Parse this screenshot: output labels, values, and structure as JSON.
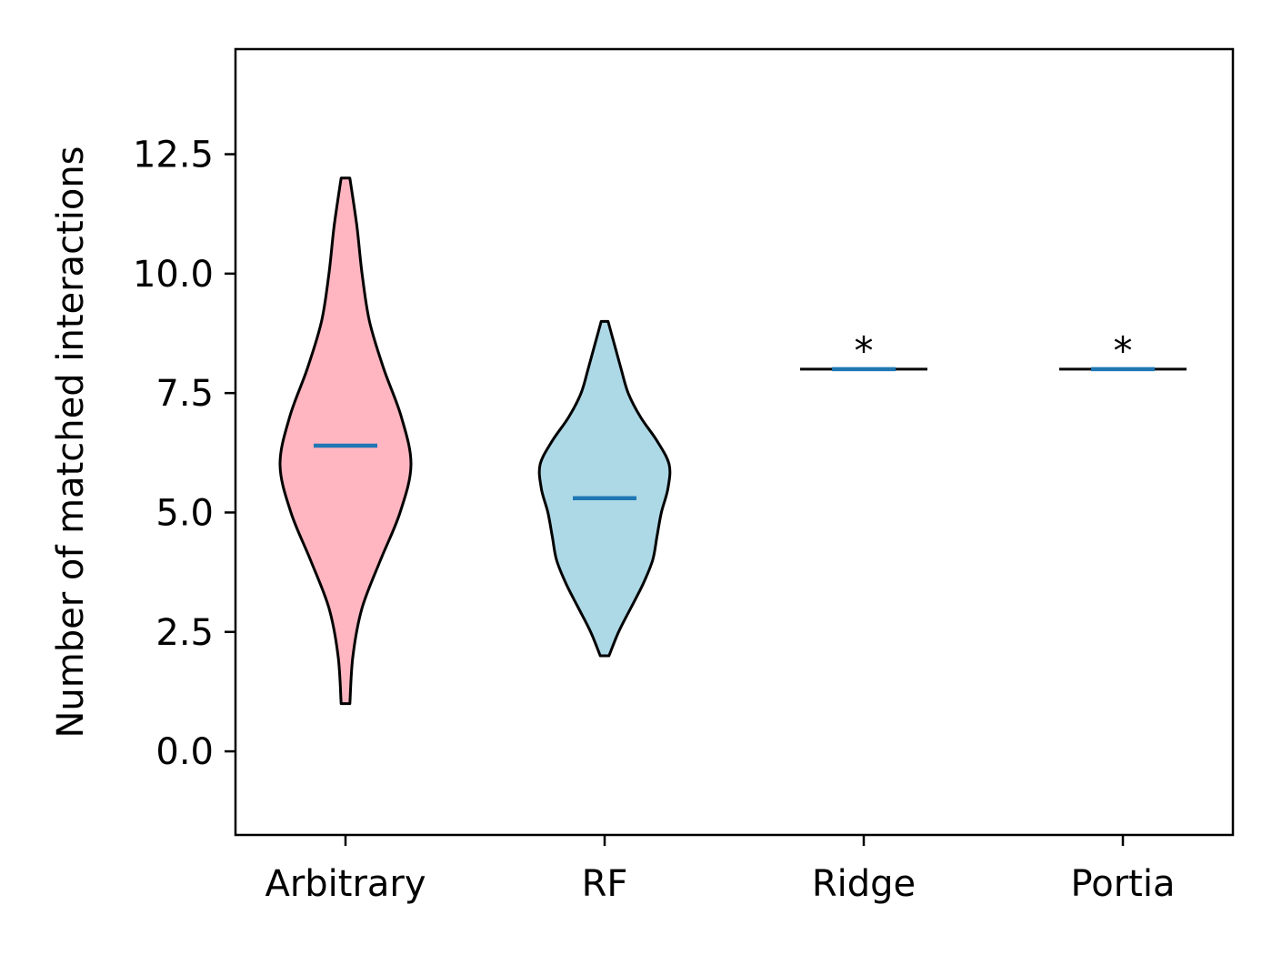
{
  "chart_data": {
    "type": "violin",
    "title": "",
    "xlabel": "",
    "ylabel": "Number of matched interactions",
    "ylim": [
      -1.75,
      14.7
    ],
    "yticks": [
      0.0,
      2.5,
      5.0,
      7.5,
      10.0,
      12.5
    ],
    "ytick_labels": [
      "0.0",
      "2.5",
      "5.0",
      "7.5",
      "10.0",
      "12.5"
    ],
    "categories": [
      "Arbitrary",
      "RF",
      "Ridge",
      "Portia"
    ],
    "grid": false,
    "legend": "none",
    "colors": {
      "Arbitrary": "#ffb6c1",
      "RF": "#add8e6",
      "mean_line": "#1f77b4",
      "outline": "#000000"
    },
    "violins": [
      {
        "category": "Arbitrary",
        "min": 1.0,
        "max": 12.0,
        "mean": 6.4,
        "profile": [
          [
            1.0,
            0.1
          ],
          [
            2.0,
            0.17
          ],
          [
            3.0,
            0.38
          ],
          [
            4.0,
            0.8
          ],
          [
            5.0,
            1.25
          ],
          [
            6.0,
            1.5
          ],
          [
            7.0,
            1.28
          ],
          [
            8.0,
            0.88
          ],
          [
            9.0,
            0.55
          ],
          [
            10.0,
            0.38
          ],
          [
            11.0,
            0.26
          ],
          [
            12.0,
            0.1
          ]
        ]
      },
      {
        "category": "RF",
        "min": 2.0,
        "max": 9.0,
        "mean": 5.3,
        "profile": [
          [
            2.0,
            0.1
          ],
          [
            2.5,
            0.32
          ],
          [
            3.0,
            0.6
          ],
          [
            3.5,
            0.88
          ],
          [
            4.0,
            1.1
          ],
          [
            4.5,
            1.2
          ],
          [
            5.0,
            1.3
          ],
          [
            5.5,
            1.45
          ],
          [
            6.0,
            1.48
          ],
          [
            6.5,
            1.2
          ],
          [
            7.0,
            0.82
          ],
          [
            7.5,
            0.54
          ],
          [
            8.0,
            0.38
          ],
          [
            8.5,
            0.23
          ],
          [
            9.0,
            0.08
          ]
        ]
      },
      {
        "category": "Ridge",
        "value": 8.0,
        "mean": 8.0,
        "annotation": "*"
      },
      {
        "category": "Portia",
        "value": 8.0,
        "mean": 8.0,
        "annotation": "*"
      }
    ]
  }
}
